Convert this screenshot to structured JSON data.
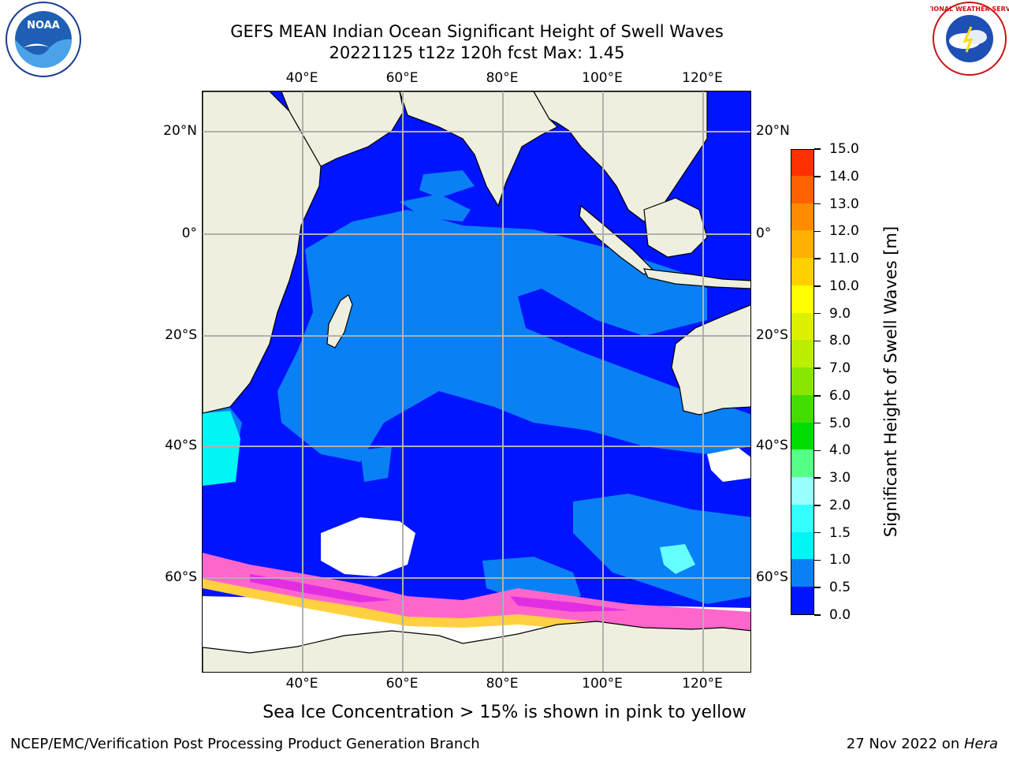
{
  "header": {
    "title_line1": "GEFS MEAN Indian Ocean Significant Height of Swell Waves",
    "title_line2": "20221125 t12z 120h fcst   Max: 1.45"
  },
  "logos": {
    "left": {
      "icon": "noaa-logo",
      "text": "NOAA"
    },
    "right": {
      "icon": "national-weather-service-logo",
      "text": "NATIONAL WEATHER SERVICE"
    }
  },
  "axes": {
    "longitude_labels": [
      "40°E",
      "60°E",
      "80°E",
      "100°E",
      "120°E"
    ],
    "latitude_labels": [
      "20°N",
      "0°",
      "20°S",
      "40°S",
      "60°S"
    ]
  },
  "map": {
    "ocean_colors": {
      "low": "#0014ff",
      "mid": "#0a80f5",
      "cyan": "#00f5f5",
      "light_cyan": "#66ffff",
      "land": "#efefdf",
      "ice_pink": "#ff66cc",
      "ice_magenta": "#e22ee2",
      "ice_yellow": "#ffd040"
    }
  },
  "colorbar": {
    "label": "Significant Height of Swell Waves [m]",
    "tick_labels": [
      "0.0",
      "0.5",
      "1.0",
      "1.5",
      "2.0",
      "3.0",
      "4.0",
      "5.0",
      "6.0",
      "7.0",
      "8.0",
      "9.0",
      "10.0",
      "11.0",
      "12.0",
      "13.0",
      "14.0",
      "15.0"
    ],
    "colors": [
      "#0014ff",
      "#0a80f5",
      "#00f5f5",
      "#33ffff",
      "#99ffff",
      "#55ff88",
      "#00dd00",
      "#44dd00",
      "#88e600",
      "#bbee00",
      "#ddf000",
      "#ffff00",
      "#ffd000",
      "#ffb000",
      "#ff8c00",
      "#ff6000",
      "#ff3000"
    ]
  },
  "footer": {
    "note": "Sea Ice Concentration > 15% is shown in pink to yellow",
    "credit": "NCEP/EMC/Verification Post Processing Product Generation Branch",
    "stamp_prefix": "27 Nov 2022 on ",
    "stamp_host": "Hera"
  }
}
